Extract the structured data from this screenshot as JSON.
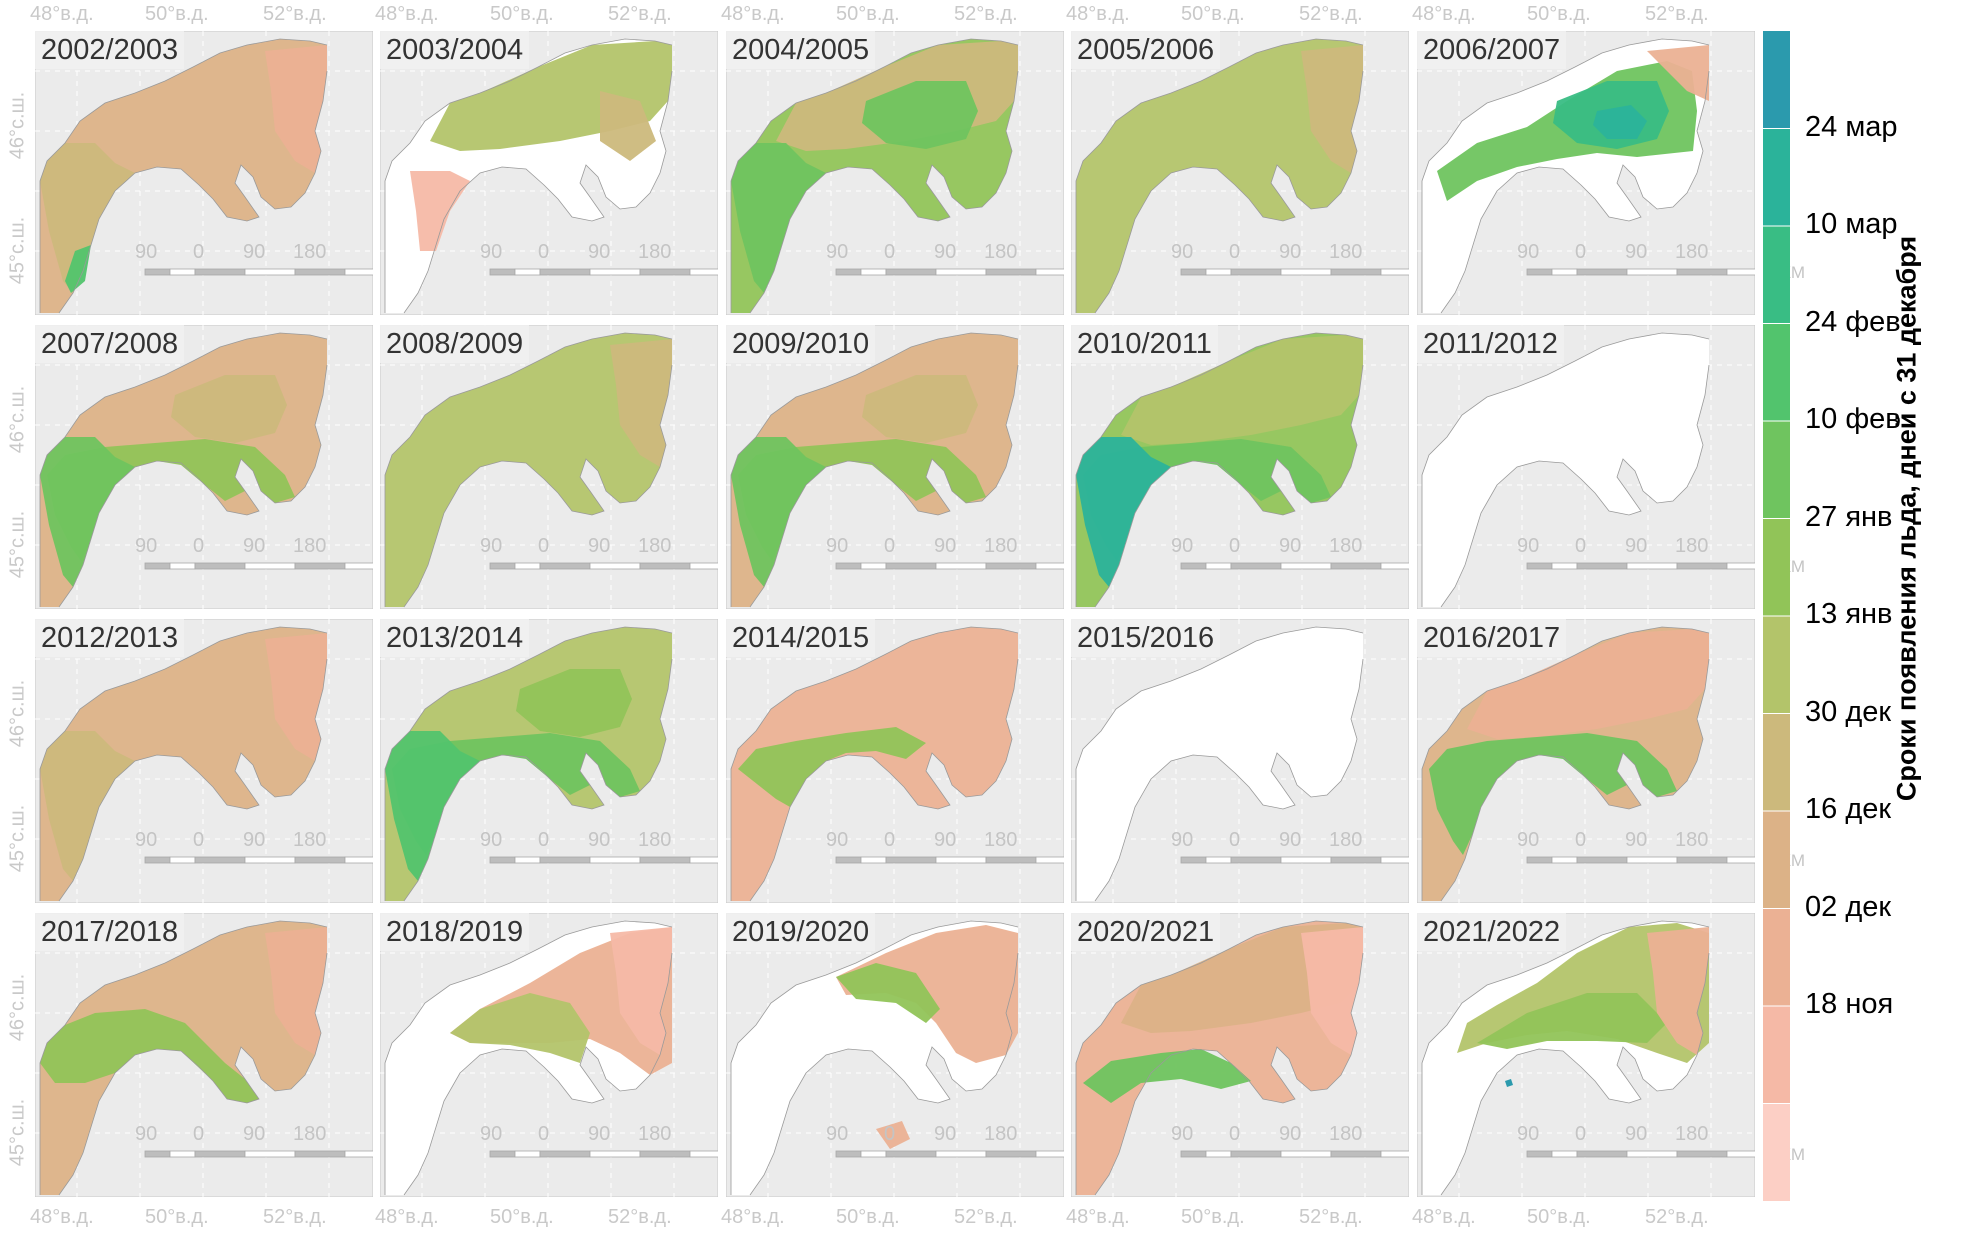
{
  "map": {
    "top_lon_labels": [
      "48°в.д.",
      "50°в.д.",
      "52°в.д."
    ],
    "bottom_lon_labels": [
      "48°в.д.",
      "50°в.д.",
      "52°в.д."
    ],
    "lat_labels": [
      "46°с.ш.",
      "45°с.ш."
    ],
    "scale_bar": {
      "labels": [
        "90",
        "0",
        "90",
        "180"
      ],
      "unit": "КМ"
    },
    "colors": {
      "land": "#ffffff",
      "panel_background": "#ebebeb",
      "gridline": "#ffffff"
    },
    "panels": [
      {
        "season": "2002/2003",
        "pattern": "tan",
        "extra": "sw-green-strip"
      },
      {
        "season": "2003/2004",
        "pattern": "olive-north",
        "extra": "pink-south"
      },
      {
        "season": "2004/2005",
        "pattern": "green-full",
        "extra": ""
      },
      {
        "season": "2005/2006",
        "pattern": "olive-full",
        "extra": ""
      },
      {
        "season": "2006/2007",
        "pattern": "teal-center",
        "extra": ""
      },
      {
        "season": "2007/2008",
        "pattern": "tan-green-south",
        "extra": ""
      },
      {
        "season": "2008/2009",
        "pattern": "olive-full",
        "extra": ""
      },
      {
        "season": "2009/2010",
        "pattern": "tan-green-south",
        "extra": ""
      },
      {
        "season": "2010/2011",
        "pattern": "green-teal-sw",
        "extra": ""
      },
      {
        "season": "2011/2012",
        "pattern": "none",
        "extra": ""
      },
      {
        "season": "2012/2013",
        "pattern": "tan",
        "extra": ""
      },
      {
        "season": "2013/2014",
        "pattern": "green-olive-mix",
        "extra": ""
      },
      {
        "season": "2014/2015",
        "pattern": "pink-green-band",
        "extra": ""
      },
      {
        "season": "2015/2016",
        "pattern": "none",
        "extra": ""
      },
      {
        "season": "2016/2017",
        "pattern": "pink-green-south",
        "extra": ""
      },
      {
        "season": "2017/2018",
        "pattern": "tan-olive-sw",
        "extra": ""
      },
      {
        "season": "2018/2019",
        "pattern": "pink-olive-north",
        "extra": ""
      },
      {
        "season": "2019/2020",
        "pattern": "pink-arc",
        "extra": ""
      },
      {
        "season": "2020/2021",
        "pattern": "pink-tan-green",
        "extra": ""
      },
      {
        "season": "2021/2022",
        "pattern": "green-north",
        "extra": "teal-dot"
      }
    ]
  },
  "legend": {
    "title": "Сроки появления льда, дней с 31 декабря",
    "labels": [
      "24 мар",
      "10 мар",
      "24 фев",
      "10 фев",
      "27 янв",
      "13 янв",
      "30 дек",
      "16 дек",
      "02 дек",
      "18 ноя"
    ],
    "colors": [
      "#2b9aad",
      "#2bb39a",
      "#39bd84",
      "#52c46d",
      "#6fc45f",
      "#91c458",
      "#b3c46a",
      "#ccb97c",
      "#dcb287",
      "#ebb194",
      "#f5b9a6",
      "#fccfc5"
    ]
  }
}
